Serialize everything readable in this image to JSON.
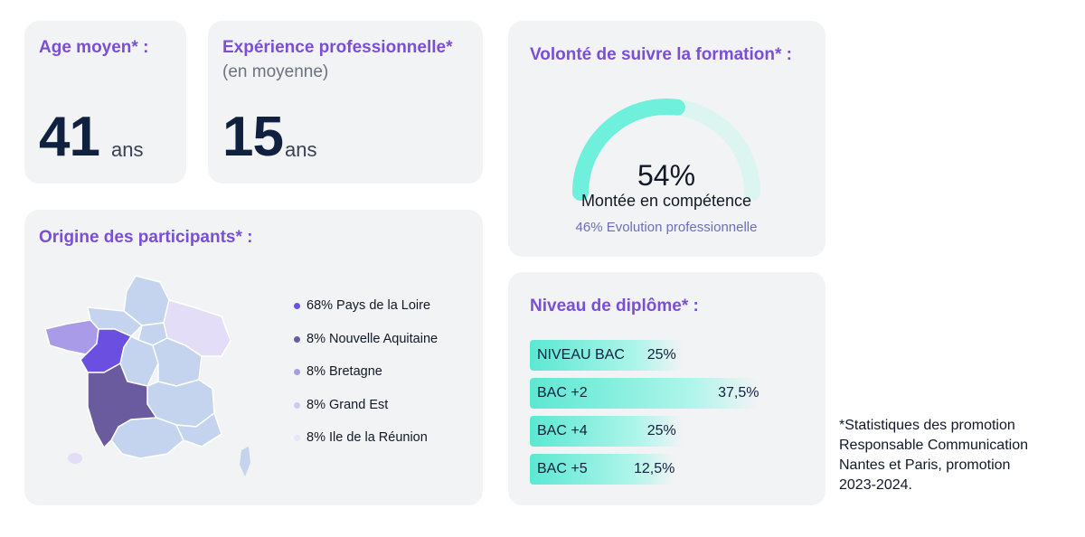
{
  "age": {
    "title": "Age moyen* :",
    "value": "41",
    "unit": "ans"
  },
  "experience": {
    "title": "Expérience professionnelle*",
    "subtitle": "(en moyenne)",
    "value": "15",
    "unit": "ans"
  },
  "volonte": {
    "title": "Volonté de suivre la formation* :",
    "percent_label": "54%",
    "percent_value": 54,
    "main_label": "Montée en compétence",
    "secondary_label": "46% Evolution professionnelle",
    "colors": {
      "fill": "#6ef0dc",
      "track": "#dcf5f1"
    }
  },
  "origine": {
    "title": "Origine des participants* :",
    "legend": [
      {
        "label": "68% Pays de la Loire",
        "color": "#6a4fe0"
      },
      {
        "label": "8% Nouvelle Aquitaine",
        "color": "#6a5a9e"
      },
      {
        "label": "8% Bretagne",
        "color": "#a99be8"
      },
      {
        "label": "8% Grand Est",
        "color": "#cfc8f3"
      },
      {
        "label": "8% Ile de la Réunion",
        "color": "#e8e4fb"
      }
    ]
  },
  "diplome": {
    "title": "Niveau de diplôme* :",
    "bars": [
      {
        "label": "NIVEAU BAC",
        "value_label": "25%",
        "value": 25
      },
      {
        "label": "BAC +2",
        "value_label": "37,5%",
        "value": 37.5
      },
      {
        "label": "BAC +4",
        "value_label": "25%",
        "value": 25
      },
      {
        "label": "BAC +5",
        "value_label": "12,5%",
        "value": 12.5
      }
    ]
  },
  "footnote": {
    "lines": [
      "*Statistiques des promotion",
      "Responsable Communication",
      "Nantes et Paris, promotion",
      "2023-2024."
    ]
  }
}
